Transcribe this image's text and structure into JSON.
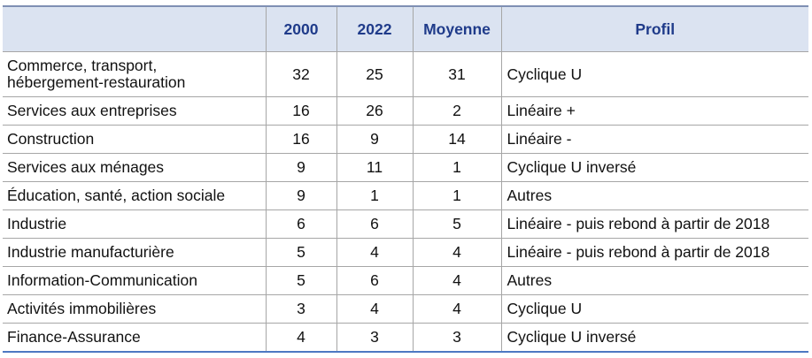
{
  "columns": {
    "label": "",
    "c2000": "2000",
    "c2022": "2022",
    "moyenne": "Moyenne",
    "profil": "Profil"
  },
  "rows": [
    {
      "label_line1": "Commerce, transport,",
      "label_line2": "hébergement-restauration",
      "v2000": "32",
      "v2022": "25",
      "moyenne": "31",
      "profil": "Cyclique  U"
    },
    {
      "label": "Services aux entreprises",
      "v2000": "16",
      "v2022": "26",
      "moyenne": "2",
      "profil": "Linéaire  +"
    },
    {
      "label": "Construction",
      "v2000": "16",
      "v2022": "9",
      "moyenne": "14",
      "profil": "Linéaire  -"
    },
    {
      "label": "Services aux ménages",
      "v2000": "9",
      "v2022": "11",
      "moyenne": "1",
      "profil": "Cyclique U inversé"
    },
    {
      "label": "Éducation, santé, action sociale",
      "v2000": "9",
      "v2022": "1",
      "moyenne": "1",
      "profil": "Autres"
    },
    {
      "label": "Industrie",
      "v2000": "6",
      "v2022": "6",
      "moyenne": "5",
      "profil": "Linéaire - puis rebond à partir de 2018"
    },
    {
      "label": "Industrie manufacturière",
      "v2000": "5",
      "v2022": "4",
      "moyenne": "4",
      "profil": "Linéaire - puis rebond à partir de 2018"
    },
    {
      "label": "Information-Communication",
      "v2000": "5",
      "v2022": "6",
      "moyenne": "4",
      "profil": "Autres"
    },
    {
      "label": "Activités immobilières",
      "v2000": "3",
      "v2022": "4",
      "moyenne": "4",
      "profil": "Cyclique U"
    },
    {
      "label": "Finance-Assurance",
      "v2000": "4",
      "v2022": "3",
      "moyenne": "3",
      "profil": "Cyclique U inversé"
    }
  ]
}
